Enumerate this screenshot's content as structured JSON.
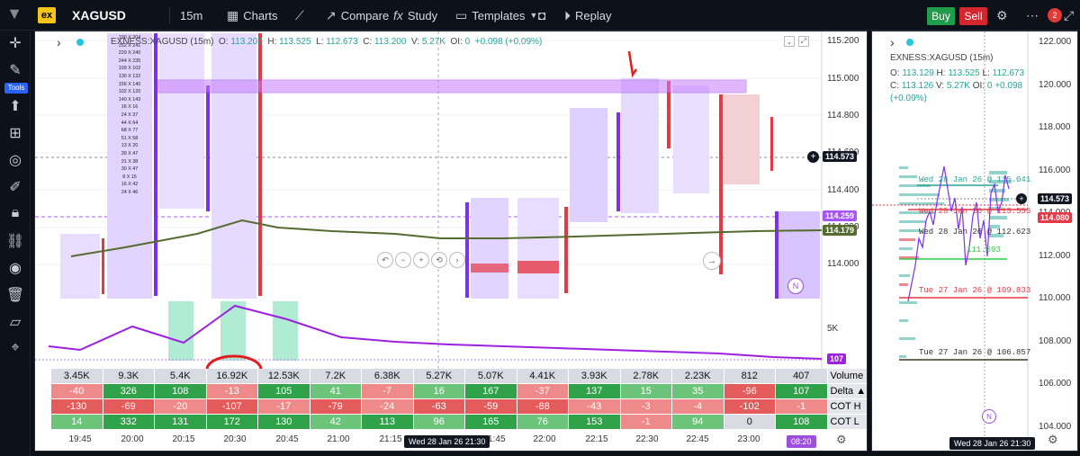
{
  "topbar": {
    "logo": "ex",
    "symbol": "XAGUSD",
    "interval": "15m",
    "charts": "Charts",
    "compare": "Compare",
    "study": "Study",
    "templates": "Templates",
    "replay": "Replay",
    "buy": "Buy",
    "sell": "Sell",
    "notification_count": "2"
  },
  "leftbar": {
    "tools_badge": "Tools"
  },
  "main": {
    "legend": {
      "name": "EXNESS:XAGUSD (15m)",
      "o_label": "O:",
      "o": "113.207",
      "h_label": "H:",
      "h": "113.525",
      "l_label": "L:",
      "l": "112.673",
      "c_label": "C:",
      "c": "113.200",
      "v_label": "V:",
      "v": "5.27K",
      "oi_label": "OI:",
      "oi": "0",
      "change": "+0.098",
      "change_pct": "(+0.09%)"
    },
    "price_axis": [
      "115.200",
      "115.000",
      "114.800",
      "114.600",
      "114.400",
      "114.200",
      "114.000"
    ],
    "price_tags": {
      "crosshair": "114.573",
      "purple": "114.259",
      "green": "114.179",
      "volume_last": "107"
    },
    "volume_axis_label": "5K",
    "time_axis": [
      "19:45",
      "20:00",
      "20:15",
      "20:30",
      "20:45",
      "21:00",
      "21:15",
      "21:45",
      "22:00",
      "22:15",
      "22:30",
      "22:45",
      "23:00"
    ],
    "time_cursor": "Wed 28 Jan 26 21:30",
    "time_last": "08:20",
    "colors": {
      "bull": "#7b2ff7",
      "bear": "#e63946",
      "band": "#c77dff",
      "vwap": "#556b2f"
    },
    "footprint_rows": [
      "190 X 204",
      "252 X 241",
      "229 X 240",
      "244 X 235",
      "109 X 102",
      "130 X 132",
      "156 X 140",
      "102 X 120",
      "140 X 143",
      "16 X 16",
      "24 X 37",
      "44 X 64",
      "68 X 77",
      "51 X 58",
      "13 X 20",
      "39 X 47",
      "31 X 38",
      "30 X 47",
      "8 X 15",
      "16 X 42",
      "24 X 46"
    ],
    "table": {
      "labels": [
        "Volume",
        "Delta ▲",
        "COT H",
        "COT L"
      ],
      "volume": [
        "3.45K",
        "9.3K",
        "5.4K",
        "16.92K",
        "12.53K",
        "7.2K",
        "6.38K",
        "5.27K",
        "5.07K",
        "4.41K",
        "3.93K",
        "2.78K",
        "2.23K",
        "812",
        "407"
      ],
      "delta": [
        "-40",
        "326",
        "108",
        "-13",
        "105",
        "41",
        "-7",
        "16",
        "167",
        "-37",
        "137",
        "15",
        "35",
        "-96",
        "107"
      ],
      "cot_h": [
        "-130",
        "-69",
        "-20",
        "-107",
        "-17",
        "-79",
        "-24",
        "-63",
        "-59",
        "-88",
        "-43",
        "-3",
        "-4",
        "-102",
        "-1"
      ],
      "cot_l": [
        "14",
        "332",
        "131",
        "172",
        "130",
        "42",
        "113",
        "96",
        "165",
        "76",
        "153",
        "-1",
        "94",
        "0",
        "108"
      ]
    }
  },
  "side": {
    "legend": {
      "name": "EXNESS:XAGUSD (15m)",
      "o_label": "O:",
      "o": "113.129",
      "h_label": "H:",
      "h": "113.525",
      "l_label": "L:",
      "l": "112.673",
      "c_label": "C:",
      "c": "113.126",
      "v_label": "V:",
      "v": "5.27K",
      "oi_label": "OI:",
      "oi": "0",
      "change": "+0.098",
      "change_pct": "(+0.09%)"
    },
    "price_axis": [
      "122.000",
      "120.000",
      "118.000",
      "116.000",
      "114.000",
      "112.000",
      "110.000",
      "108.000",
      "106.000",
      "104.000"
    ],
    "price_tags": {
      "crosshair": "114.573",
      "red": "114.080"
    },
    "annotations": [
      "Wed 28 Jan 26 @ 115.041",
      "Wed 28 Jan 26 @ 113.553",
      "Wed 28 Jan 26 @ 112.623",
      "111.693",
      "Tue 27 Jan 26 @ 109.833",
      "Tue 27 Jan 26 @ 106.857"
    ],
    "time_cursor": "Wed 28 Jan 26 21:30"
  }
}
